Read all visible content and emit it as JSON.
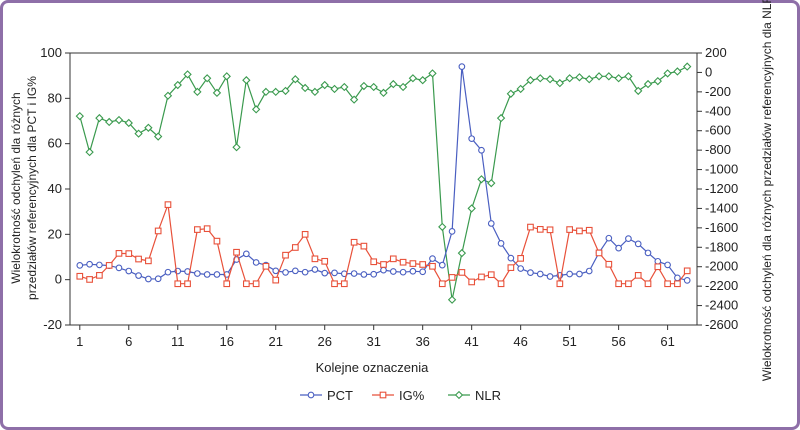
{
  "chart_data": {
    "type": "line",
    "x_start": 1,
    "xlabel": "Kolejne oznaczenia",
    "ylabel_left": [
      "Wielokrotność odchyleń dla różnych",
      "przedziałów referencyjnych dla PCT i IG%"
    ],
    "ylabel_right": "Wielokrotność odchyleń dla różnych przedziałów referencyjnych dla NLR",
    "ylim_left": [
      -20,
      100
    ],
    "ylim_right": [
      -2600,
      200
    ],
    "xlim": [
      0,
      64
    ],
    "x_ticks": [
      1,
      6,
      11,
      16,
      21,
      26,
      31,
      36,
      41,
      46,
      51,
      56,
      61
    ],
    "y_ticks_left": [
      -20,
      0,
      20,
      40,
      60,
      80,
      100
    ],
    "y_ticks_right": [
      200,
      0,
      -200,
      -400,
      -600,
      -800,
      -1000,
      -1200,
      -1400,
      -1600,
      -1800,
      -2000,
      -2200,
      -2400,
      -2600
    ],
    "grid": false,
    "legend_position": "bottom",
    "series": [
      {
        "name": "PCT",
        "axis": "left",
        "color": "#4a5fc1",
        "marker": "circle",
        "values": [
          6.3,
          6.8,
          6.5,
          6.2,
          5.2,
          3.8,
          1.8,
          0.3,
          0.4,
          3.3,
          3.8,
          3.6,
          2.7,
          2.3,
          2.3,
          2.3,
          8.9,
          11.4,
          7.6,
          6.4,
          3.9,
          3.2,
          3.9,
          3.3,
          4.5,
          2.9,
          3.0,
          2.6,
          2.7,
          2.3,
          2.4,
          4.2,
          3.6,
          3.3,
          3.7,
          3.5,
          9.3,
          6.4,
          21.3,
          94.0,
          62.2,
          57.1,
          24.8,
          16.0,
          9.5,
          4.9,
          3.1,
          2.5,
          1.4,
          1.9,
          2.5,
          2.5,
          3.8,
          11.9,
          18.3,
          13.9,
          18.1,
          15.8,
          11.8,
          8.1,
          6.5,
          0.8,
          -0.3
        ]
      },
      {
        "name": "IG%",
        "axis": "left",
        "color": "#e8513a",
        "marker": "square",
        "values": [
          1.5,
          0.1,
          1.9,
          6.3,
          11.6,
          11.5,
          9.1,
          8.3,
          21.5,
          33.1,
          -1.8,
          -1.8,
          22.1,
          22.5,
          17.0,
          -1.8,
          12.1,
          -1.8,
          -1.8,
          5.9,
          -0.2,
          10.8,
          14.2,
          20.0,
          9.2,
          8.1,
          -1.8,
          -1.8,
          16.5,
          14.8,
          7.9,
          6.7,
          9.2,
          7.7,
          7.1,
          6.7,
          5.9,
          -1.8,
          1.0,
          3.2,
          -1.0,
          1.2,
          2.2,
          -1.8,
          5.3,
          9.4,
          23.2,
          22.2,
          22.0,
          -1.8,
          22.1,
          21.5,
          21.8,
          11.8,
          6.8,
          -1.8,
          -1.8,
          1.9,
          -1.8,
          5.7,
          -1.8,
          -1.8,
          3.9
        ]
      },
      {
        "name": "NLR",
        "axis": "right",
        "color": "#3a9a4e",
        "marker": "diamond",
        "values": [
          -450,
          -820,
          -470,
          -510,
          -490,
          -520,
          -630,
          -570,
          -660,
          -240,
          -130,
          -20,
          -200,
          -60,
          -210,
          -40,
          -770,
          -80,
          -380,
          -200,
          -200,
          -190,
          -70,
          -160,
          -200,
          -130,
          -170,
          -150,
          -280,
          -140,
          -150,
          -210,
          -120,
          -150,
          -60,
          -80,
          -10,
          -1590,
          -2340,
          -1860,
          -1400,
          -1100,
          -1140,
          -470,
          -220,
          -170,
          -80,
          -60,
          -70,
          -110,
          -60,
          -50,
          -70,
          -40,
          -40,
          -60,
          -40,
          -190,
          -120,
          -90,
          -10,
          10,
          60
        ]
      }
    ]
  }
}
